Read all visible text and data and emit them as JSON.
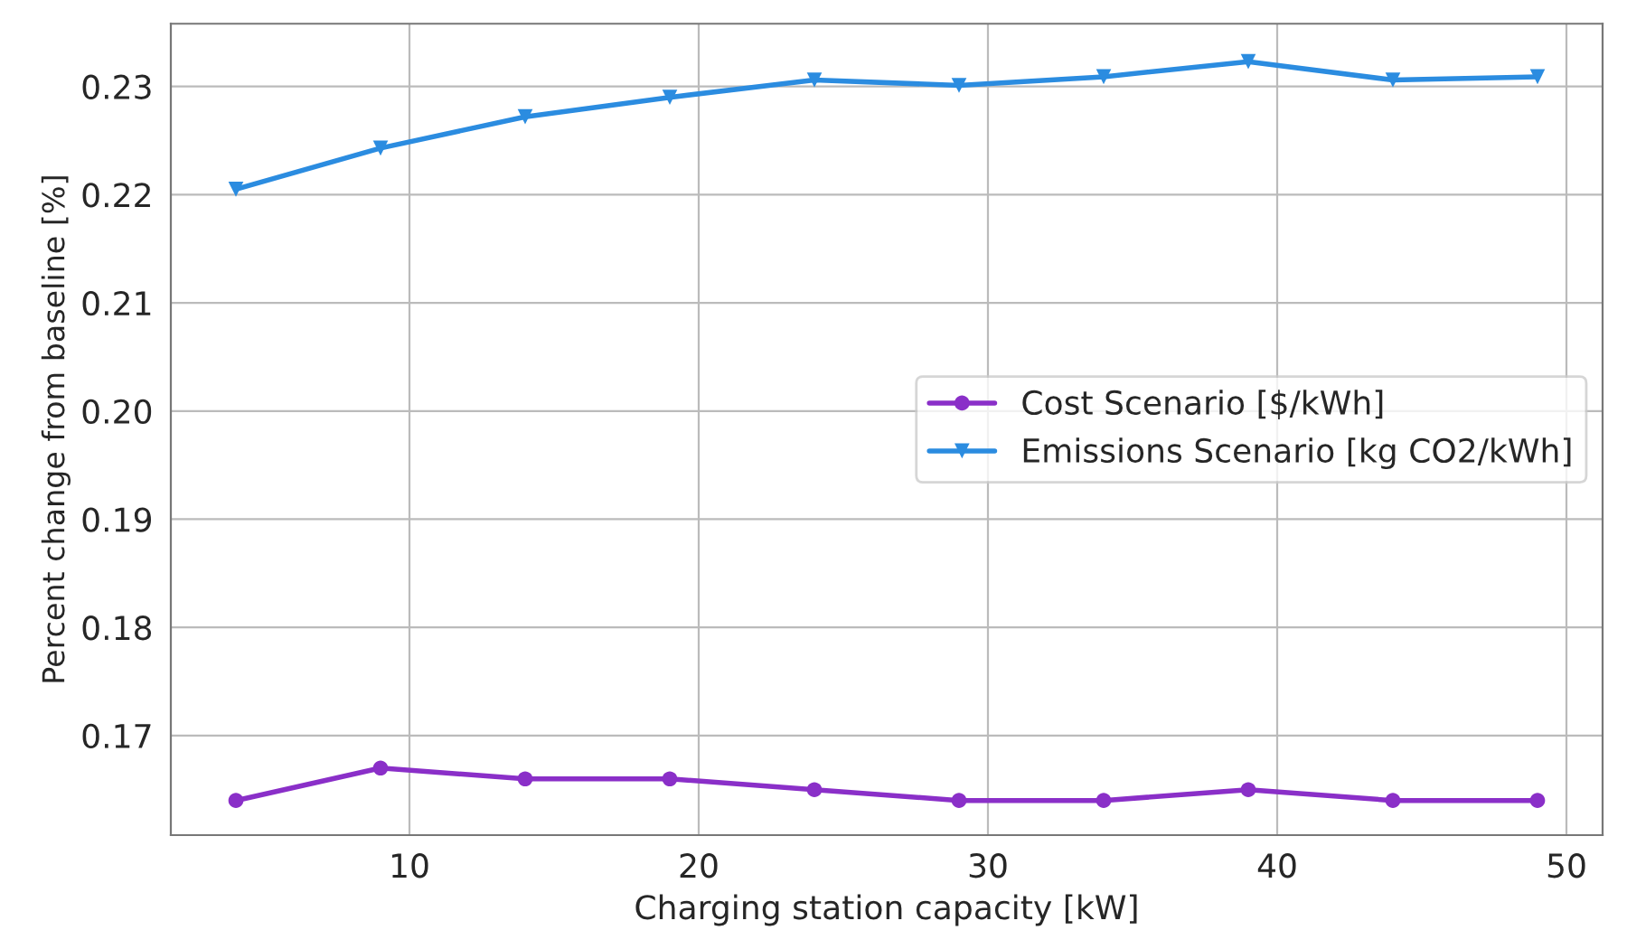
{
  "chart_data": {
    "type": "line",
    "xlabel": "Charging station capacity [kW]",
    "ylabel": "Percent change from baseline [%]",
    "x": [
      4,
      9,
      14,
      19,
      24,
      29,
      34,
      39,
      44,
      49
    ],
    "series": [
      {
        "name": "Cost Scenario [$/kWh]",
        "color": "#8a2fc8",
        "marker": "circle",
        "values": [
          0.164,
          0.167,
          0.166,
          0.166,
          0.165,
          0.164,
          0.164,
          0.165,
          0.164,
          0.164
        ]
      },
      {
        "name": "Emissions Scenario [kg CO2/kWh]",
        "color": "#2b8ce0",
        "marker": "triangle",
        "values": [
          0.2205,
          0.2243,
          0.2272,
          0.229,
          0.2306,
          0.2301,
          0.2309,
          0.2323,
          0.2306,
          0.2309
        ]
      }
    ],
    "xlim": [
      1.75,
      51.25
    ],
    "xticks": [
      10,
      20,
      30,
      40,
      50
    ],
    "ylim": [
      0.1608,
      0.2358
    ],
    "yticks": [
      0.17,
      0.18,
      0.19,
      {
        "value": 0.2,
        "label": "0.20"
      },
      0.21,
      0.22,
      0.23
    ],
    "grid": true,
    "legend": "center right",
    "line_style": "solid"
  }
}
